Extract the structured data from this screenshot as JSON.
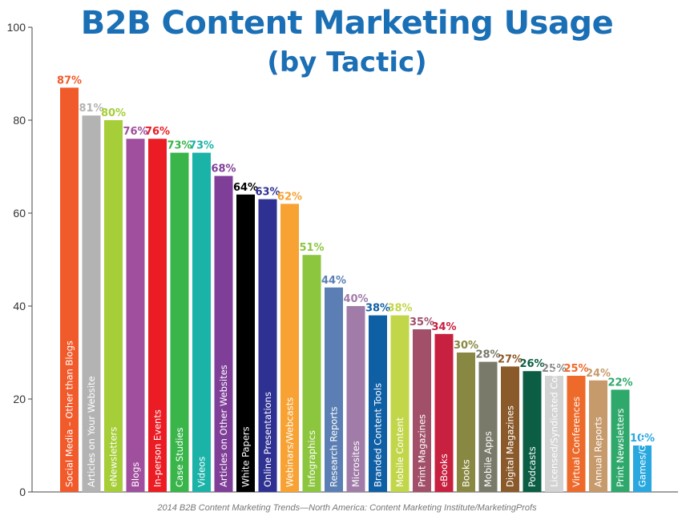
{
  "chart_data": {
    "type": "bar",
    "title": "B2B Content Marketing Usage",
    "subtitle": "(by Tactic)",
    "source": "2014 B2B Content Marketing Trends—North America: Content Marketing Institute/MarketingProfs",
    "ylim": [
      0,
      100
    ],
    "yticks": [
      0,
      20,
      40,
      60,
      80,
      100
    ],
    "grid": false,
    "categories": [
      "Social Media – Other than Blogs",
      "Articles on Your Website",
      "eNewsletters",
      "Blogs",
      "In-person Events",
      "Case Studies",
      "Videos",
      "Articles on Other Websites",
      "White Papers",
      "Online Presentations",
      "Webinars/Webcasts",
      "Infographics",
      "Research Reports",
      "Microsites",
      "Branded Content Tools",
      "Mobile Content",
      "Print Magazines",
      "eBooks",
      "Books",
      "Mobile Apps",
      "Digital Magazines",
      "Podcasts",
      "Licensed/Syndicated Content",
      "Virtual Conferences",
      "Annual Reports",
      "Print Newsletters",
      "Games/Gamification"
    ],
    "values": [
      87,
      81,
      80,
      76,
      76,
      73,
      73,
      68,
      64,
      63,
      62,
      51,
      44,
      40,
      38,
      38,
      35,
      34,
      30,
      28,
      27,
      26,
      25,
      25,
      24,
      22,
      10
    ],
    "value_labels": [
      "87%",
      "81%",
      "80%",
      "76%",
      "76%",
      "73%",
      "73%",
      "68%",
      "64%",
      "63%",
      "62%",
      "51%",
      "44%",
      "40%",
      "38%",
      "38%",
      "35%",
      "34%",
      "30%",
      "28%",
      "27%",
      "26%",
      "25%",
      "25%",
      "24%",
      "22%",
      "10%"
    ],
    "colors": [
      "#f15a2b",
      "#b3b3b3",
      "#a6ce39",
      "#a04e9e",
      "#ec1c24",
      "#39b54a",
      "#1bb3a8",
      "#7f3f98",
      "#000000",
      "#2e3192",
      "#f7a232",
      "#8cc63f",
      "#5b7fb4",
      "#a27ca8",
      "#0f5fa5",
      "#c2d64a",
      "#a2506a",
      "#c8203f",
      "#898842",
      "#7a7a6a",
      "#8b5a2b",
      "#0b5e44",
      "#d3d3d3",
      "#ee6a2a",
      "#c79a6c",
      "#2fa86b",
      "#29a8e0"
    ],
    "label_text_colors": [
      "#ffffff",
      "#000000",
      "#000000",
      "#ffffff",
      "#ffffff",
      "#000000",
      "#000000",
      "#ffffff",
      "#ffffff",
      "#ffffff",
      "#ffffff",
      "#000000",
      "#ffffff",
      "#ffffff",
      "#ffffff",
      "#000000",
      "#ffffff",
      "#ffffff",
      "#ffffff",
      "#ffffff",
      "#ffffff",
      "#ffffff",
      "#000000",
      "#ffffff",
      "#000000",
      "#000000",
      "#000000"
    ]
  }
}
